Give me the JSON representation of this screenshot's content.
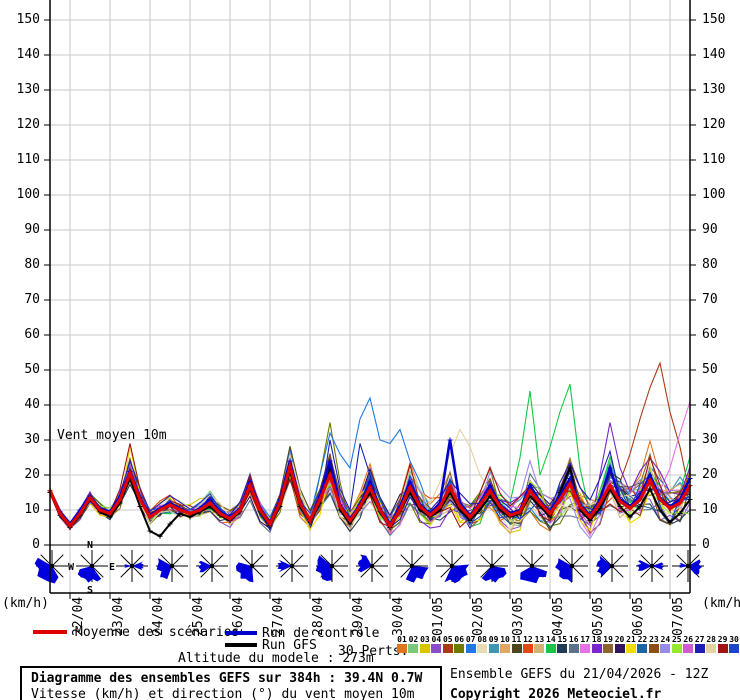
{
  "labels": {
    "inner_title": "Vent moyen 10m",
    "kmh_left": "(km/h)",
    "kmh_right": "(km/h)"
  },
  "legend": {
    "mean_label": "Moyenne des scénarios",
    "control_label": "Run de contrôle",
    "gfs_label": "Run GFS",
    "perts_label": "30 Perts.",
    "pert_numbers": [
      "01",
      "02",
      "03",
      "04",
      "05",
      "06",
      "07",
      "08",
      "09",
      "10",
      "11",
      "12",
      "13",
      "14",
      "15",
      "16",
      "17",
      "18",
      "19",
      "20",
      "21",
      "22",
      "23",
      "24",
      "25",
      "26",
      "27",
      "28",
      "29",
      "30"
    ],
    "pert_colors": [
      "#e07520",
      "#7cc87c",
      "#dcc300",
      "#8a4fc8",
      "#a83c14",
      "#6e7a00",
      "#1e78e6",
      "#e6dcb4",
      "#3c96b4",
      "#e0a864",
      "#4f451e",
      "#e64614",
      "#d2b478",
      "#14c846",
      "#1e3c55",
      "#5c7387",
      "#e673e6",
      "#7828c8",
      "#8c6432",
      "#32145f",
      "#f0dc00",
      "#1e64a5",
      "#8c5014",
      "#968ce6",
      "#96e632",
      "#d25ad2",
      "#1e1eb4",
      "#e6d2a0",
      "#a01414",
      "#1e46c8"
    ]
  },
  "footer": {
    "altitude": "Altitude du modele : 273m",
    "title": "Diagramme des ensembles GEFS sur 384h : 39.4N 0.7W",
    "subtitle": "Vitesse (km/h) et direction (°) du vent moyen 10m",
    "run_info": "Ensemble GEFS du 21/04/2026 - 12Z",
    "copyright": "Copyright 2026 Meteociel.fr"
  },
  "chart_data": {
    "type": "line",
    "title": "Vent moyen 10m",
    "ylabel": "(km/h)",
    "ylim": [
      0,
      155
    ],
    "y_ticks": [
      0,
      10,
      20,
      30,
      40,
      50,
      60,
      70,
      80,
      90,
      100,
      110,
      120,
      130,
      140,
      150
    ],
    "x_dates": [
      "22/04",
      "23/04",
      "24/04",
      "25/04",
      "26/04",
      "27/04",
      "28/04",
      "29/04",
      "30/04",
      "01/05",
      "02/05",
      "03/05",
      "04/05",
      "05/05",
      "06/05",
      "07/05"
    ],
    "x_start": "21/04 12Z",
    "step_hours": 6,
    "n_steps": 65,
    "grid": true,
    "colors": {
      "grid": "#c8c8c8",
      "axis": "#000000",
      "mean": "#e00000",
      "control": "#0000cc",
      "gfs": "#000000",
      "wind": "#0000dd"
    },
    "series": [
      {
        "name": "Moyenne des scénarios",
        "role": "mean",
        "values": [
          15.5,
          9,
          5.5,
          9,
          13.5,
          10,
          9,
          13,
          20.5,
          13,
          8,
          10,
          11.5,
          10,
          9,
          10,
          12,
          9,
          7.5,
          10,
          17,
          10,
          6,
          12,
          22.5,
          12,
          7,
          13,
          20,
          11,
          7,
          11,
          16.5,
          10,
          5.5,
          10,
          16.5,
          11,
          8.5,
          11,
          16.5,
          11,
          8,
          11.5,
          15.5,
          11,
          8.5,
          9.5,
          15.5,
          12,
          9,
          13,
          17.5,
          11,
          8,
          12,
          17,
          12.5,
          10.5,
          13,
          18.5,
          13,
          10.5,
          12,
          17
        ]
      },
      {
        "name": "Run de contrôle",
        "role": "control",
        "values": [
          15.5,
          9.5,
          6,
          10,
          14,
          10.5,
          9.5,
          14,
          21,
          13.5,
          8.5,
          10.5,
          12,
          10.5,
          9,
          10.5,
          13,
          9.5,
          8,
          10.5,
          18,
          10.5,
          6.5,
          13,
          24,
          12.5,
          7,
          14,
          24,
          11.5,
          7.5,
          11.5,
          18,
          10.5,
          6,
          11,
          18,
          11.5,
          9,
          12,
          30,
          12,
          8.5,
          12,
          17,
          11.5,
          9,
          10,
          17,
          12.5,
          9.5,
          14,
          19,
          11.5,
          8.5,
          13,
          22,
          13,
          11,
          14,
          20,
          13.5,
          11,
          13,
          19
        ]
      },
      {
        "name": "Run GFS",
        "role": "gfs",
        "values": [
          15,
          8.5,
          5,
          8.5,
          13,
          9.5,
          8,
          12,
          19,
          11,
          4,
          2.5,
          6,
          9,
          8,
          9.5,
          11,
          8.5,
          7,
          9.5,
          16,
          9.5,
          5.5,
          11,
          21,
          11,
          6.5,
          12,
          22,
          10,
          6,
          10.5,
          15,
          9.5,
          5,
          9.5,
          15,
          10,
          8,
          10,
          15,
          10,
          7,
          10,
          14,
          10,
          8,
          9,
          14,
          11,
          8,
          15,
          22,
          10,
          7,
          10.5,
          16,
          11,
          8,
          11,
          16,
          10,
          6.5,
          9,
          13
        ]
      }
    ],
    "members": {
      "count": 30,
      "spread": [
        1.5,
        2,
        2,
        2.5,
        3,
        3,
        3,
        3.5,
        4,
        4,
        4,
        4,
        4,
        4,
        4,
        4,
        4.5,
        4.5,
        4.5,
        4.5,
        4.5,
        4.5,
        4.5,
        5,
        5,
        5.5,
        5.5,
        5.5,
        6,
        6,
        6,
        6,
        6.5,
        6.5,
        6.5,
        6.5,
        7,
        7,
        7,
        7,
        7.5,
        7.5,
        7.5,
        7.5,
        8,
        8,
        8,
        8,
        8.5,
        8.5,
        8.5,
        8.5,
        9,
        9,
        9,
        9,
        9.5,
        9.5,
        9.5,
        9.5,
        10,
        10,
        10,
        10,
        10
      ],
      "outliers": [
        {
          "member": 7,
          "start": 27,
          "values": [
            20,
            32,
            26,
            22,
            36,
            42,
            30,
            29,
            33,
            24,
            18
          ]
        },
        {
          "member": 14,
          "start": 46,
          "values": [
            12,
            25,
            44,
            20,
            28,
            38,
            46,
            22
          ]
        },
        {
          "member": 5,
          "start": 57,
          "values": [
            18,
            26,
            36,
            45,
            52,
            38,
            28
          ]
        },
        {
          "member": 17,
          "start": 62,
          "values": [
            22,
            32,
            41
          ]
        },
        {
          "member": 28,
          "start": 39,
          "values": [
            18,
            26,
            33,
            28,
            20
          ]
        },
        {
          "member": 6,
          "start": 27,
          "values": [
            20,
            35,
            18
          ]
        },
        {
          "member": 29,
          "start": 7,
          "values": [
            16,
            29,
            16
          ]
        },
        {
          "member": 27,
          "start": 28,
          "values": [
            30,
            16,
            10,
            29,
            20
          ]
        },
        {
          "member": 18,
          "start": 55,
          "values": [
            20,
            35,
            22
          ]
        },
        {
          "member": 21,
          "start": 8,
          "values": [
            28
          ]
        }
      ]
    },
    "wind_directions": {
      "compass_labels": {
        "n": "N",
        "e": "E",
        "s": "S",
        "w": "W"
      },
      "roses": [
        {
          "a": 135,
          "s": 75,
          "r": 18
        },
        {
          "a": 110,
          "s": 55,
          "r": 17,
          "labels": true
        },
        {
          "a": 0,
          "s": 22,
          "r": 12,
          "a2": 180,
          "s2": 14,
          "r2": 8
        },
        {
          "a": 160,
          "s": 50,
          "r": 16
        },
        {
          "a": 175,
          "s": 30,
          "r": 14
        },
        {
          "a": 140,
          "s": 55,
          "r": 17
        },
        {
          "a": 180,
          "s": 25,
          "r": 15
        },
        {
          "a": 155,
          "s": 65,
          "r": 17
        },
        {
          "a": 195,
          "s": 45,
          "r": 15
        },
        {
          "a": 60,
          "s": 55,
          "r": 17
        },
        {
          "a": 55,
          "s": 60,
          "r": 18
        },
        {
          "a": 70,
          "s": 60,
          "r": 17
        },
        {
          "a": 85,
          "s": 65,
          "r": 18
        },
        {
          "a": 150,
          "s": 60,
          "r": 17
        },
        {
          "a": 178,
          "s": 42,
          "r": 16
        },
        {
          "a": 180,
          "s": 26,
          "r": 15,
          "a2": 0,
          "s2": 20,
          "r2": 12
        },
        {
          "a": 10,
          "s": 40,
          "r": 14,
          "a2": 185,
          "s2": 18,
          "r2": 9
        }
      ]
    }
  }
}
